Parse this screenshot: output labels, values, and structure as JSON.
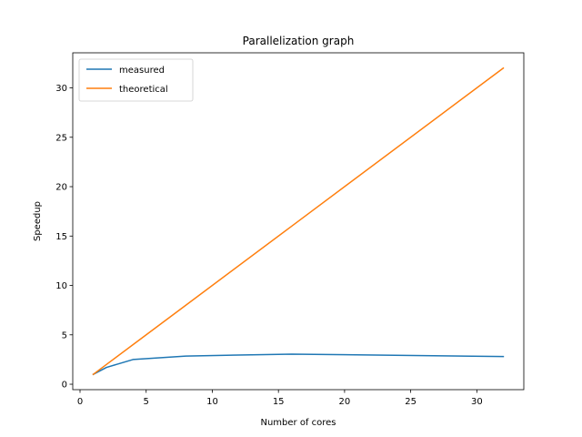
{
  "chart_data": {
    "type": "line",
    "title": "Parallelization graph",
    "xlabel": "Number of cores",
    "ylabel": "Speedup",
    "xlim": [
      -0.55,
      33.55
    ],
    "ylim": [
      -0.55,
      33.55
    ],
    "xticks": [
      0,
      5,
      10,
      15,
      20,
      25,
      30
    ],
    "yticks": [
      0,
      5,
      10,
      15,
      20,
      25,
      30
    ],
    "grid": false,
    "legend_position": "top-left",
    "series": [
      {
        "name": "measured",
        "color": "#1f77b4",
        "x": [
          1,
          2,
          4,
          8,
          16,
          32
        ],
        "y": [
          1.0,
          1.7,
          2.5,
          2.85,
          3.05,
          2.8
        ]
      },
      {
        "name": "theoretical",
        "color": "#ff7f0e",
        "x": [
          1,
          2,
          4,
          8,
          16,
          32
        ],
        "y": [
          1,
          2,
          4,
          8,
          16,
          32
        ]
      }
    ]
  }
}
